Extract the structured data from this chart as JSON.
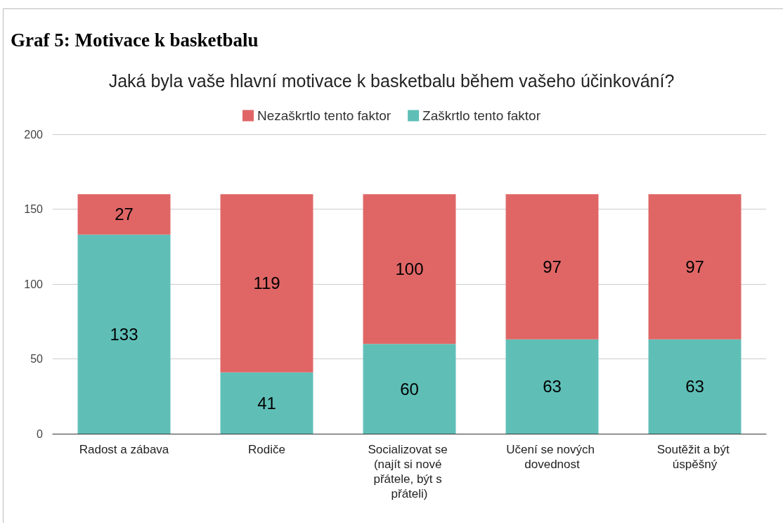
{
  "chart_data": {
    "type": "bar",
    "title": "Graf 5: Motivace k basketbalu",
    "subtitle": "Jaká byla vaše hlavní motivace k basketbalu během vašeho účinkování?",
    "categories": [
      "Radost a zábava",
      "Rodiče",
      "Socializovat se (najít si nové přátele, být s přáteli)",
      "Učení se nových dovednost",
      "Soutěžit a být úspěšný"
    ],
    "series": [
      {
        "name": "Zaškrtlo tento faktor",
        "color": "#5fbfb7",
        "values": [
          133,
          41,
          60,
          63,
          63
        ]
      },
      {
        "name": "Nezaškrtlo tento faktor",
        "color": "#e06666",
        "values": [
          27,
          119,
          100,
          97,
          97
        ]
      }
    ],
    "stacked": true,
    "ylim": [
      0,
      200
    ],
    "yticks": [
      0,
      50,
      100,
      150,
      200
    ],
    "grid": "y",
    "legend": "top",
    "data_labels": true
  }
}
